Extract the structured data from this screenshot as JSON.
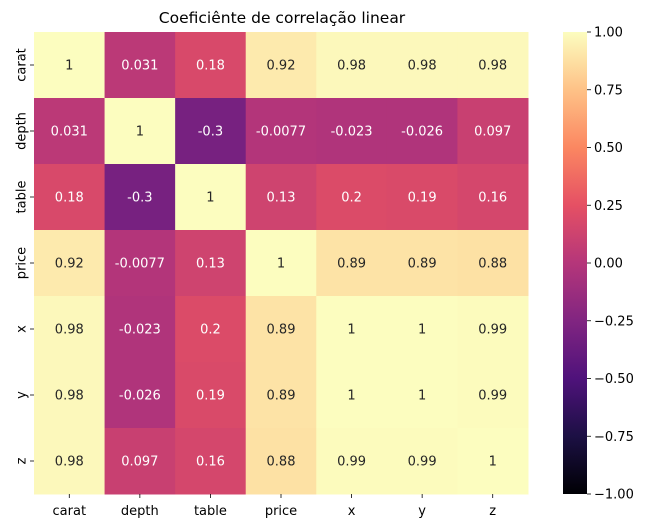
{
  "chart_data": {
    "type": "heatmap",
    "title": "Coeficiênte de correlação linear",
    "xlabel": "",
    "ylabel": "",
    "colormap": "magma",
    "colormap_stops": [
      "#000004",
      "#1c1044",
      "#4f127b",
      "#812581",
      "#b5367a",
      "#e55064",
      "#fb8761",
      "#fec287",
      "#fcfdbf"
    ],
    "x_labels": [
      "carat",
      "depth",
      "table",
      "price",
      "x",
      "y",
      "z"
    ],
    "y_labels": [
      "carat",
      "depth",
      "table",
      "price",
      "x",
      "y",
      "z"
    ],
    "values": [
      [
        1,
        0.031,
        0.18,
        0.92,
        0.98,
        0.98,
        0.98
      ],
      [
        0.031,
        1,
        -0.3,
        -0.0077,
        -0.023,
        -0.026,
        0.097
      ],
      [
        0.18,
        -0.3,
        1,
        0.13,
        0.2,
        0.19,
        0.16
      ],
      [
        0.92,
        -0.0077,
        0.13,
        1,
        0.89,
        0.89,
        0.88
      ],
      [
        0.98,
        -0.023,
        0.2,
        0.89,
        1,
        1,
        0.99
      ],
      [
        0.98,
        -0.026,
        0.19,
        0.89,
        1,
        1,
        0.99
      ],
      [
        0.98,
        0.097,
        0.16,
        0.88,
        0.99,
        0.99,
        1
      ]
    ],
    "annotations": [
      [
        "1",
        "0.031",
        "0.18",
        "0.92",
        "0.98",
        "0.98",
        "0.98"
      ],
      [
        "0.031",
        "1",
        "-0.3",
        "-0.0077",
        "-0.023",
        "-0.026",
        "0.097"
      ],
      [
        "0.18",
        "-0.3",
        "1",
        "0.13",
        "0.2",
        "0.19",
        "0.16"
      ],
      [
        "0.92",
        "-0.0077",
        "0.13",
        "1",
        "0.89",
        "0.89",
        "0.88"
      ],
      [
        "0.98",
        "-0.023",
        "0.2",
        "0.89",
        "1",
        "1",
        "0.99"
      ],
      [
        "0.98",
        "-0.026",
        "0.19",
        "0.89",
        "1",
        "1",
        "0.99"
      ],
      [
        "0.98",
        "0.097",
        "0.16",
        "0.88",
        "0.99",
        "0.99",
        "1"
      ]
    ],
    "vmin": -1,
    "vmax": 1,
    "colorbar_ticks": [
      1.0,
      0.75,
      0.5,
      0.25,
      0.0,
      -0.25,
      -0.5,
      -0.75,
      -1.0
    ],
    "colorbar_tick_labels": [
      "1.00",
      "0.75",
      "0.50",
      "0.25",
      "0.00",
      "−0.25",
      "−0.50",
      "−0.75",
      "−1.00"
    ]
  }
}
